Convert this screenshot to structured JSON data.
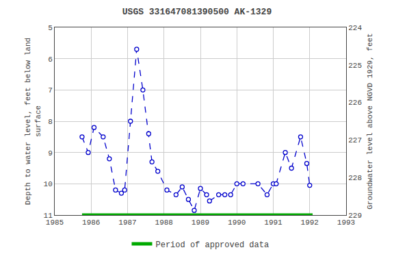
{
  "chart_data": {
    "type": "line",
    "title": "USGS 331647081390500 AK-1329",
    "ylabel": "Depth to water level, feet below land\nsurface",
    "y2label": "Groundwater level above NGVD 1929, feet",
    "x": [
      1985.75,
      1985.92,
      1986.08,
      1986.33,
      1986.5,
      1986.67,
      1986.83,
      1986.92,
      1987.08,
      1987.25,
      1987.42,
      1987.58,
      1987.67,
      1987.83,
      1988.08,
      1988.33,
      1988.5,
      1988.67,
      1988.83,
      1989.0,
      1989.17,
      1989.25,
      1989.5,
      1989.67,
      1989.83,
      1990.0,
      1990.17,
      1990.58,
      1990.83,
      1991.0,
      1991.08,
      1991.33,
      1991.5,
      1991.75,
      1991.92,
      1992.0
    ],
    "series": [
      {
        "values": [
          8.5,
          9.0,
          8.2,
          8.5,
          9.2,
          10.2,
          10.3,
          10.2,
          8.0,
          5.7,
          7.0,
          8.4,
          9.3,
          9.6,
          10.2,
          10.35,
          10.1,
          10.5,
          10.85,
          10.15,
          10.35,
          10.55,
          10.35,
          10.35,
          10.35,
          10.0,
          10.0,
          10.0,
          10.35,
          10.0,
          10.0,
          9.0,
          9.5,
          8.5,
          9.35,
          10.05
        ],
        "color": "#0000cc",
        "line_style": "dashed",
        "marker": "circle"
      },
      {
        "name": "Period of approved data",
        "x": [
          1985.75,
          1992.08
        ],
        "values": [
          11.0,
          11.0
        ],
        "color": "#00aa00",
        "line_style": "solid"
      }
    ],
    "xlim": [
      1985,
      1993
    ],
    "xticks": [
      1985,
      1986,
      1987,
      1988,
      1989,
      1990,
      1991,
      1992,
      1993
    ],
    "ylim": [
      11.0,
      5.0
    ],
    "yticks": [
      5.0,
      6.0,
      7.0,
      8.0,
      9.0,
      10.0,
      11.0
    ],
    "y2lim": [
      229.0,
      224.0
    ],
    "y2ticks": [
      224.0,
      225.0,
      226.0,
      227.0,
      228.0,
      229.0
    ],
    "grid": true,
    "legend": "bottom"
  }
}
